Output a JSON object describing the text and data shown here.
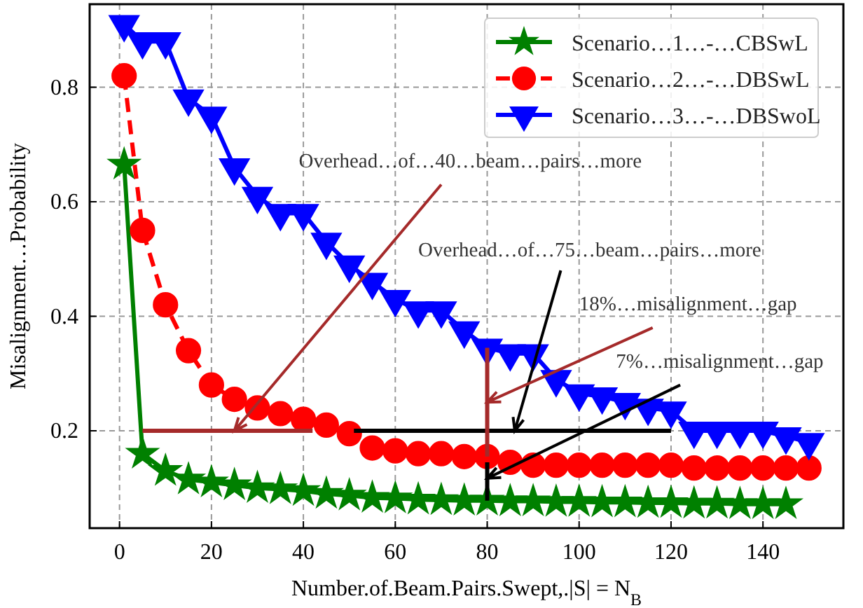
{
  "chart_data": {
    "type": "line",
    "xlabel": "Number.of.Beam.Pairs.Swept,.|S| = N$_{B}$",
    "ylabel": "Misalignment…Probability",
    "x": [
      1,
      5,
      10,
      15,
      20,
      25,
      30,
      35,
      40,
      45,
      50,
      55,
      60,
      65,
      70,
      75,
      80,
      85,
      90,
      95,
      100,
      105,
      110,
      115,
      120,
      125,
      130,
      135,
      140,
      145,
      150
    ],
    "series": [
      {
        "name": "Scenario…1…-…CBSwL",
        "color": "#008000",
        "marker": "star",
        "line_style": "solid",
        "values": [
          0.665,
          0.16,
          0.13,
          0.115,
          0.11,
          0.105,
          0.1,
          0.098,
          0.095,
          0.09,
          0.087,
          0.083,
          0.082,
          0.08,
          0.079,
          0.078,
          0.078,
          0.077,
          0.077,
          0.076,
          0.076,
          0.075,
          0.075,
          0.074,
          0.074,
          0.073,
          0.073,
          0.072,
          0.072,
          0.072,
          null
        ]
      },
      {
        "name": "Scenario…2…-…DBSwL",
        "color": "#ff0000",
        "marker": "circle",
        "line_style": "dashed",
        "values": [
          0.82,
          0.55,
          0.42,
          0.34,
          0.28,
          0.255,
          0.24,
          0.23,
          0.22,
          0.21,
          0.195,
          0.17,
          0.165,
          0.16,
          0.16,
          0.155,
          0.155,
          0.145,
          0.14,
          0.14,
          0.14,
          0.14,
          0.14,
          0.14,
          0.14,
          0.135,
          0.135,
          0.135,
          0.135,
          0.135,
          0.135
        ]
      },
      {
        "name": "Scenario…3…-…DBSwoL",
        "color": "#0000ff",
        "marker": "triangle",
        "line_style": "solid",
        "values": [
          0.91,
          0.88,
          0.88,
          0.78,
          0.75,
          0.66,
          0.61,
          0.58,
          0.58,
          0.53,
          0.49,
          0.46,
          0.43,
          0.41,
          0.41,
          0.375,
          0.345,
          0.335,
          0.335,
          0.29,
          0.265,
          0.26,
          0.25,
          0.24,
          0.235,
          0.2,
          0.2,
          0.2,
          0.2,
          0.19,
          0.18
        ]
      },
      {
        "color": "#a52a2a",
        "marker": "none",
        "line_style": "solid",
        "x": [
          5,
          42
        ],
        "values": [
          0.2,
          0.2
        ]
      },
      {
        "color": "#000000",
        "marker": "none",
        "line_style": "solid",
        "x": [
          51,
          120
        ],
        "values": [
          0.2,
          0.2
        ]
      },
      {
        "color": "#a52a2a",
        "marker": "none",
        "line_style": "solid",
        "x": [
          80,
          80
        ],
        "values": [
          0.345,
          0.155
        ]
      },
      {
        "color": "#000000",
        "marker": "none",
        "line_style": "solid",
        "x": [
          80,
          80
        ],
        "values": [
          0.145,
          0.078
        ]
      }
    ],
    "xlim": [
      -6.5,
      157.5
    ],
    "xticks": [
      0,
      20,
      40,
      60,
      80,
      100,
      120,
      140
    ],
    "ylim": [
      0.03,
      0.945
    ],
    "yticks": [
      0.2,
      0.4,
      0.6,
      0.8
    ],
    "grid": true,
    "legend": "top right",
    "annotations": [
      {
        "text": "Overhead…of…40…beam…pairs…more",
        "x": 25,
        "y": 0.2
      },
      {
        "text": "Overhead…of…75…beam…pairs…more",
        "x": 86,
        "y": 0.2
      },
      {
        "text": "18%…misalignment…gap",
        "x": 80,
        "y": 0.25
      },
      {
        "text": "7%…misalignment…gap",
        "x": 80,
        "y": 0.117
      }
    ]
  }
}
